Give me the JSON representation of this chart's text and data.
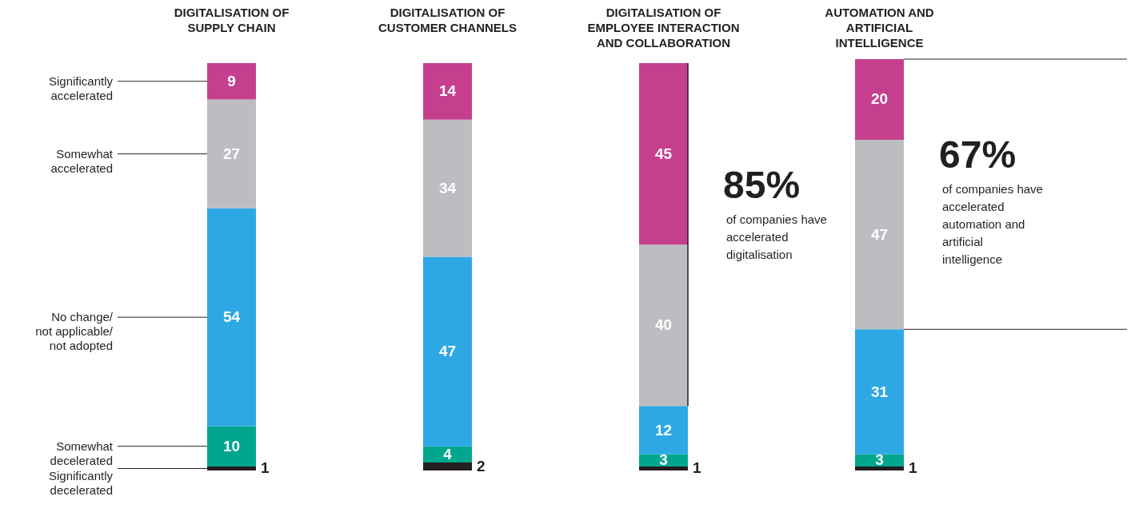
{
  "chart_data": {
    "type": "bar",
    "stacked": true,
    "data_labels": true,
    "legend": "left",
    "categories": [
      "DIGITALISATION OF SUPPLY CHAIN",
      "DIGITALISATION OF CUSTOMER CHANNELS",
      "DIGITALISATION OF EMPLOYEE INTERACTION AND COLLABORATION",
      "AUTOMATION AND ARTIFICIAL INTELLIGENCE"
    ],
    "series": [
      {
        "name": "Significantly decelerated",
        "color": "#231f20",
        "values": [
          1,
          2,
          1,
          1
        ]
      },
      {
        "name": "Somewhat decelerated",
        "color": "#00a78e",
        "values": [
          10,
          4,
          3,
          3
        ]
      },
      {
        "name": "No change/ not applicable/ not adopted",
        "color": "#2ea8e5",
        "values": [
          54,
          47,
          12,
          31
        ]
      },
      {
        "name": "Somewhat accelerated",
        "color": "#bbbdc0",
        "values": [
          27,
          34,
          40,
          47
        ]
      },
      {
        "name": "Significantly accelerated",
        "color": "#c63f8f",
        "values": [
          9,
          14,
          45,
          20
        ]
      }
    ],
    "annotations": [
      "85%",
      "of companies have accelerated digitalisation",
      "67%",
      "of companies have accelerated automation and artificial intelligence"
    ]
  }
}
